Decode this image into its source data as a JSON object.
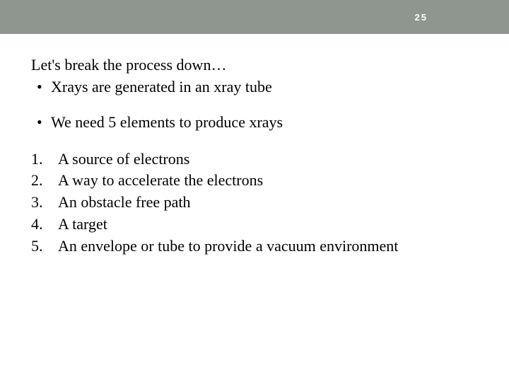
{
  "header": {
    "slide_number": "25",
    "background_color": "#8e968f",
    "text_color": "#ffffff"
  },
  "content": {
    "intro": "Let's break the process down…",
    "bullets": [
      "Xrays are generated in an xray tube",
      "We need 5 elements to produce xrays"
    ],
    "numbered_items": [
      {
        "num": "1.",
        "text": "A source of electrons"
      },
      {
        "num": "2.",
        "text": "A way to accelerate the electrons"
      },
      {
        "num": "3.",
        "text": "An obstacle free path"
      },
      {
        "num": "4.",
        "text": "A target"
      },
      {
        "num": "5.",
        "text": "An envelope or tube to provide a vacuum environment"
      }
    ]
  },
  "style": {
    "body_font_size": 22,
    "body_color": "#000000",
    "page_background": "#ffffff"
  }
}
